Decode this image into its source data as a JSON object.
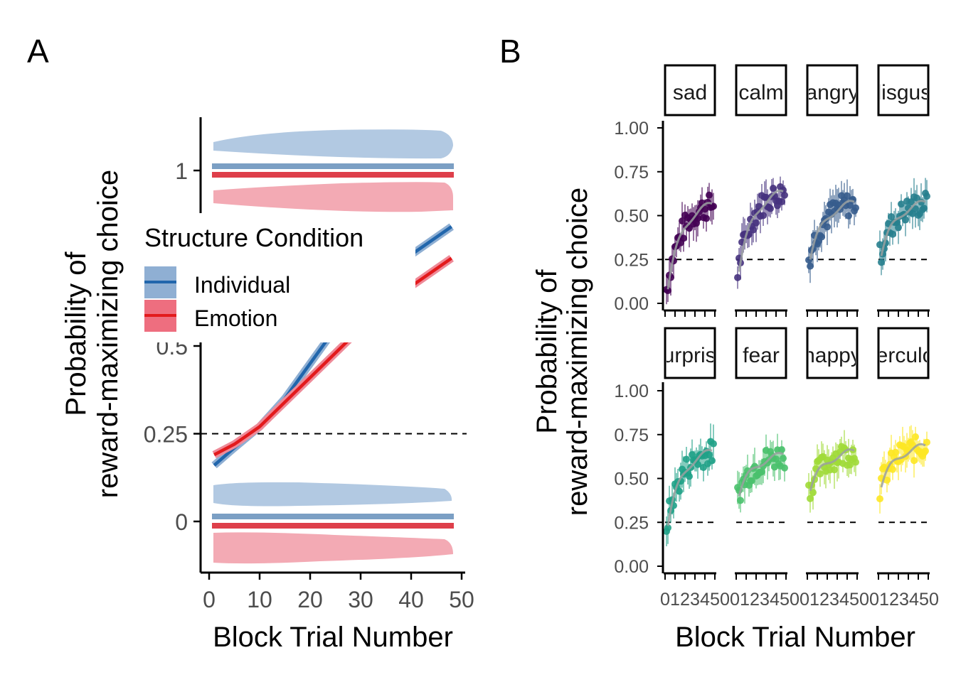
{
  "panel_labels": [
    "A",
    "B"
  ],
  "chart_data": [
    {
      "type": "line",
      "panel": "A",
      "xlabel": "Block Trial Number",
      "ylabel_lines": [
        "Probability of",
        "reward-maximizing choice"
      ],
      "xlim": [
        0,
        50
      ],
      "x_ticks": [
        0,
        10,
        20,
        30,
        40,
        50
      ],
      "y_ticks": [
        {
          "value": 0,
          "label": "0"
        },
        {
          "value": 0.25,
          "label": "0.25"
        },
        {
          "value": 0.5,
          "label": "0.5"
        },
        {
          "value": 1,
          "label": "1"
        }
      ],
      "reference_line": 0.25,
      "legend": {
        "title": "Structure Condition",
        "placement": "center-left",
        "entries": [
          "Individual",
          "Emotion"
        ]
      },
      "colors": {
        "Individual": "#2166ac",
        "Emotion": "#e31a1c",
        "Individual_fill": "#b2c9e2",
        "Emotion_fill": "#f3aab4"
      },
      "x": [
        1,
        5,
        10,
        15,
        20,
        25,
        30,
        35,
        40,
        45,
        48
      ],
      "series": [
        {
          "name": "Individual",
          "values": [
            0.16,
            0.21,
            0.27,
            0.35,
            0.45,
            0.55,
            0.63,
            0.7,
            0.76,
            0.81,
            0.84
          ]
        },
        {
          "name": "Emotion",
          "values": [
            0.19,
            0.22,
            0.27,
            0.34,
            0.41,
            0.48,
            0.55,
            0.61,
            0.67,
            0.72,
            0.75
          ]
        }
      ]
    },
    {
      "type": "scatter",
      "panel": "B",
      "xlabel": "Block Trial Number",
      "ylabel_lines": [
        "Probability of",
        "reward-maximizing choice"
      ],
      "y_ticks": [
        "0.00",
        "0.25",
        "0.50",
        "0.75",
        "1.00"
      ],
      "ylim": [
        0,
        1
      ],
      "reference_line": 0.25,
      "x_tick_label_strip": "0123450012345001234500123450",
      "facets": [
        {
          "label": "sad",
          "color": "#440154",
          "y_start": 0.08,
          "y_end": 0.56
        },
        {
          "label": "calm",
          "color": "#46327e",
          "y_start": 0.18,
          "y_end": 0.63
        },
        {
          "label": "angry",
          "color": "#365c8d",
          "y_start": 0.25,
          "y_end": 0.57
        },
        {
          "label": "disgust",
          "color": "#277f8e",
          "y_start": 0.27,
          "y_end": 0.57
        },
        {
          "label": "surprise",
          "color": "#1fa187",
          "y_start": 0.23,
          "y_end": 0.65
        },
        {
          "label": "fear",
          "color": "#4ac16d",
          "y_start": 0.4,
          "y_end": 0.63
        },
        {
          "label": "happy",
          "color": "#a0da39",
          "y_start": 0.43,
          "y_end": 0.65
        },
        {
          "label": "tuberculosis",
          "color": "#fde725",
          "y_start": 0.45,
          "y_end": 0.68
        }
      ],
      "strip_display": [
        "sad",
        "calm",
        "angry",
        "isgus",
        "urpris",
        "fear",
        "happ",
        "uberc"
      ]
    }
  ]
}
